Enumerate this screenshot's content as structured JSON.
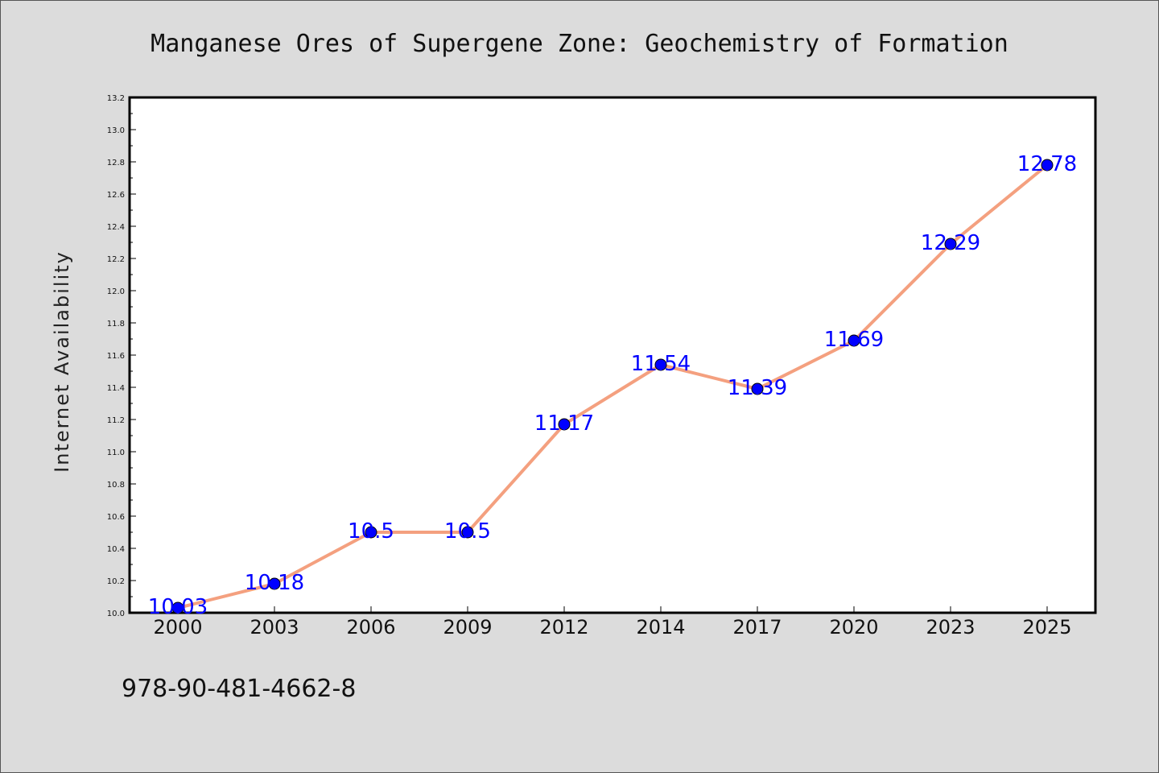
{
  "chart_data": {
    "type": "line",
    "title": "Manganese Ores of Supergene Zone: Geochemistry of Formation",
    "xlabel": "",
    "ylabel": "Internet Availability",
    "categories": [
      "2000",
      "2003",
      "2006",
      "2009",
      "2012",
      "2014",
      "2017",
      "2020",
      "2023",
      "2025"
    ],
    "series": [
      {
        "values": [
          10.03,
          10.18,
          10.5,
          10.5,
          11.17,
          11.54,
          11.39,
          11.69,
          12.29,
          12.78
        ],
        "labels": [
          "10.03",
          "10.18",
          "10.5",
          "10.5",
          "11.17",
          "11.54",
          "11.39",
          "11.69",
          "12.29",
          "12.78"
        ],
        "line_color": "#f4a07f",
        "marker_color": "#0000ff"
      }
    ],
    "ylim": [
      10.0,
      13.2
    ],
    "yticks": [
      "10.0",
      "10.2",
      "10.4",
      "10.6",
      "10.8",
      "11.0",
      "11.2",
      "11.4",
      "11.6",
      "11.8",
      "12.0",
      "12.2",
      "12.4",
      "12.6",
      "12.8",
      "13.0",
      "13.2"
    ],
    "grid": false,
    "legend": "none"
  },
  "footer": {
    "isbn": "978-90-481-4662-8"
  }
}
